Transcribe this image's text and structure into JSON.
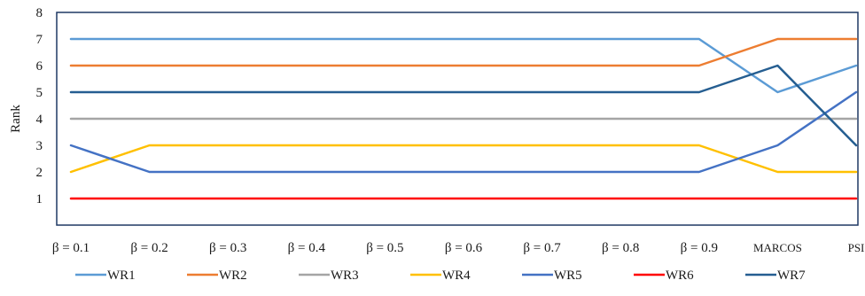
{
  "chart_data": {
    "type": "line",
    "title": "",
    "xlabel": "",
    "ylabel": "Rank",
    "ylim": [
      0,
      8
    ],
    "yticks": [
      1,
      2,
      3,
      4,
      5,
      6,
      7,
      8
    ],
    "grid": false,
    "legend_position": "bottom",
    "categories": [
      "β = 0.1",
      "β = 0.2",
      "β = 0.3",
      "β = 0.4",
      "β = 0.5",
      "β = 0.6",
      "β = 0.7",
      "β = 0.8",
      "β = 0.9",
      "MARCOS",
      "PSI"
    ],
    "series": [
      {
        "name": "WR1",
        "color": "#5b9bd5",
        "values": [
          7,
          7,
          7,
          7,
          7,
          7,
          7,
          7,
          7,
          5,
          6
        ]
      },
      {
        "name": "WR2",
        "color": "#ed7d31",
        "values": [
          6,
          6,
          6,
          6,
          6,
          6,
          6,
          6,
          6,
          7,
          7
        ]
      },
      {
        "name": "WR3",
        "color": "#a5a5a5",
        "values": [
          4,
          4,
          4,
          4,
          4,
          4,
          4,
          4,
          4,
          4,
          4
        ]
      },
      {
        "name": "WR4",
        "color": "#ffc000",
        "values": [
          2,
          3,
          3,
          3,
          3,
          3,
          3,
          3,
          3,
          2,
          2
        ]
      },
      {
        "name": "WR5",
        "color": "#4472c4",
        "values": [
          3,
          2,
          2,
          2,
          2,
          2,
          2,
          2,
          2,
          3,
          5
        ]
      },
      {
        "name": "WR6",
        "color": "#ff0000",
        "values": [
          1,
          1,
          1,
          1,
          1,
          1,
          1,
          1,
          1,
          1,
          1
        ]
      },
      {
        "name": "WR7",
        "color": "#255e91",
        "values": [
          5,
          5,
          5,
          5,
          5,
          5,
          5,
          5,
          5,
          6,
          3
        ]
      }
    ]
  }
}
